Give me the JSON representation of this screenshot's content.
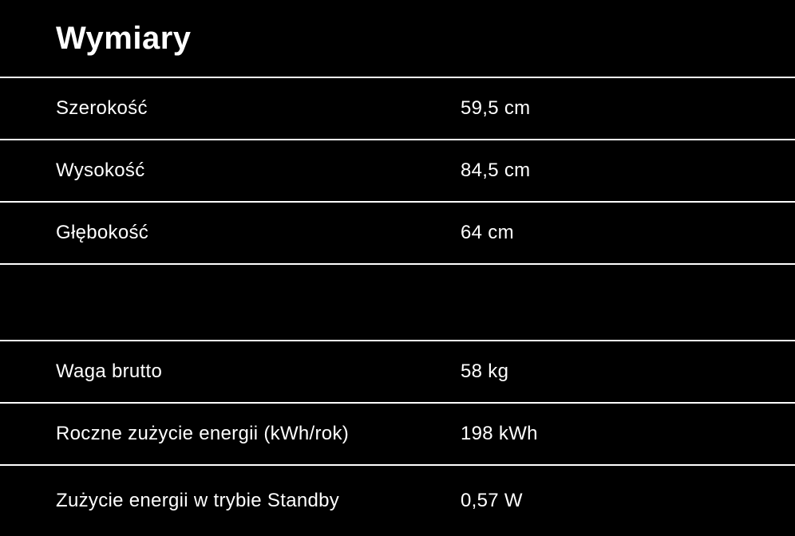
{
  "page": {
    "background_color": "#000000",
    "text_color": "#ffffff",
    "divider_color": "#ffffff"
  },
  "section": {
    "title": "Wymiary"
  },
  "rows": [
    {
      "label": "Szerokość",
      "value": "59,5 cm"
    },
    {
      "label": "Wysokość",
      "value": "84,5 cm"
    },
    {
      "label": "Głębokość",
      "value": "64 cm"
    },
    {
      "label": "",
      "value": ""
    },
    {
      "label": "Waga brutto",
      "value": "58 kg"
    },
    {
      "label": "Roczne zużycie energii (kWh/rok)",
      "value": "198 kWh"
    },
    {
      "label": "Zużycie energii w trybie Standby",
      "value": "0,57 W"
    }
  ]
}
